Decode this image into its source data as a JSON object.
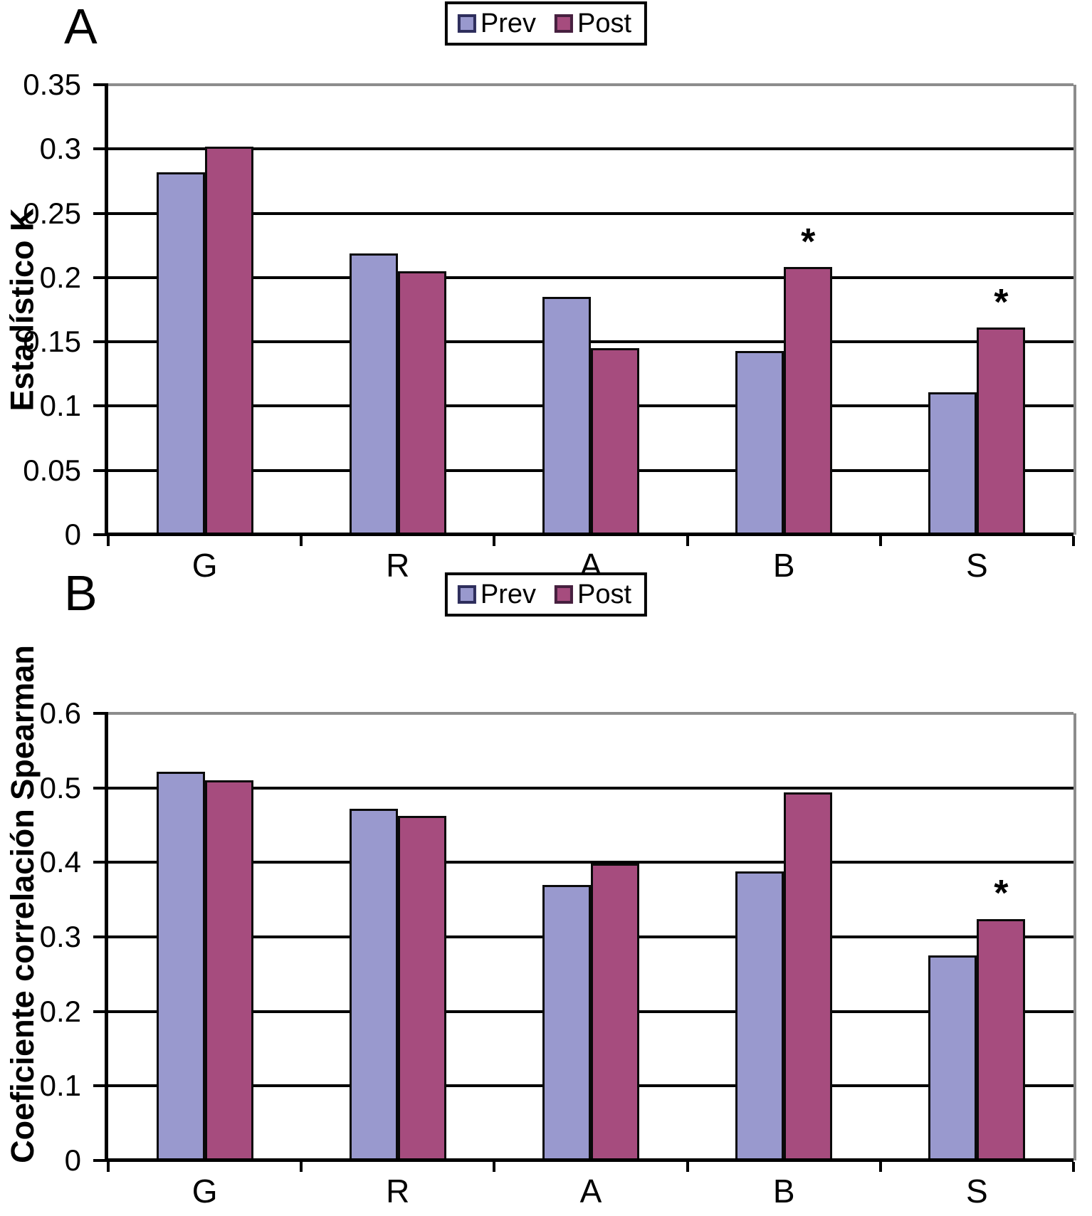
{
  "figure": {
    "background": "#ffffff",
    "text_color": "#000000",
    "grid_color": "#000000",
    "frame_gray_color": "#8c8c8c"
  },
  "legend": {
    "items": [
      {
        "label": "Prev",
        "color": "#9999CE",
        "border": "#2e2e5c"
      },
      {
        "label": "Post",
        "color": "#A64C7E",
        "border": "#46203f"
      }
    ]
  },
  "panels": [
    {
      "letter": "A"
    },
    {
      "letter": "B"
    }
  ],
  "chart_data": [
    {
      "type": "bar",
      "panel": "A",
      "ylabel": "Estadístico K",
      "xlabel": "",
      "categories": [
        "G",
        "R",
        "A",
        "B",
        "S"
      ],
      "series": [
        {
          "name": "Prev",
          "color": "#9999CE",
          "values": [
            0.282,
            0.219,
            0.185,
            0.143,
            0.111
          ],
          "markers": [
            "",
            "",
            "",
            "",
            ""
          ]
        },
        {
          "name": "Post",
          "color": "#A64C7E",
          "values": [
            0.302,
            0.205,
            0.145,
            0.208,
            0.161
          ],
          "markers": [
            "",
            "",
            "",
            "*",
            "*"
          ]
        }
      ],
      "ylim": [
        0,
        0.35
      ],
      "yticks": [
        {
          "v": 0,
          "label": "0"
        },
        {
          "v": 0.05,
          "label": "0.05"
        },
        {
          "v": 0.1,
          "label": "0.1"
        },
        {
          "v": 0.15,
          "label": "0.15"
        },
        {
          "v": 0.2,
          "label": "0.2"
        },
        {
          "v": 0.25,
          "label": "0.25"
        },
        {
          "v": 0.3,
          "label": "0.3"
        },
        {
          "v": 0.35,
          "label": "0.35"
        }
      ],
      "grid": true,
      "legend_position": "top-center",
      "significance_marker": "*"
    },
    {
      "type": "bar",
      "panel": "B",
      "ylabel": "Coeficiente correlación Spearman",
      "xlabel": "",
      "categories": [
        "G",
        "R",
        "A",
        "B",
        "S"
      ],
      "series": [
        {
          "name": "Prev",
          "color": "#9999CE",
          "values": [
            0.522,
            0.472,
            0.37,
            0.388,
            0.275
          ],
          "markers": [
            "",
            "",
            "",
            "",
            ""
          ]
        },
        {
          "name": "Post",
          "color": "#A64C7E",
          "values": [
            0.51,
            0.462,
            0.398,
            0.494,
            0.324
          ],
          "markers": [
            "",
            "",
            "",
            "",
            "*"
          ]
        }
      ],
      "ylim": [
        0,
        0.6
      ],
      "yticks": [
        {
          "v": 0,
          "label": "0"
        },
        {
          "v": 0.1,
          "label": "0.1"
        },
        {
          "v": 0.2,
          "label": "0.2"
        },
        {
          "v": 0.3,
          "label": "0.3"
        },
        {
          "v": 0.4,
          "label": "0.4"
        },
        {
          "v": 0.5,
          "label": "0.5"
        },
        {
          "v": 0.6,
          "label": "0.6"
        }
      ],
      "grid": true,
      "legend_position": "top-center",
      "significance_marker": "*"
    }
  ]
}
